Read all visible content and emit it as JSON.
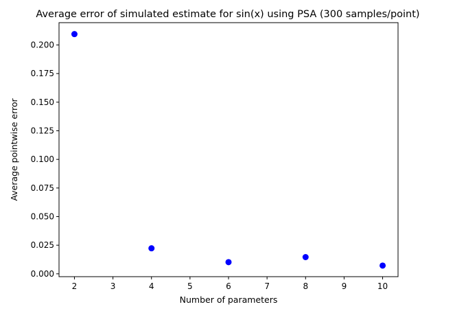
{
  "chart_data": {
    "type": "scatter",
    "title": "Average error of simulated estimate for sin(x) using PSA (300 samples/point)",
    "xlabel": "Number of parameters",
    "ylabel": "Average pointwise error",
    "xlim": [
      1.6,
      10.4
    ],
    "ylim": [
      -0.0025,
      0.2195
    ],
    "x_ticks": [
      2,
      3,
      4,
      5,
      6,
      7,
      8,
      9,
      10
    ],
    "x_tick_labels": [
      "2",
      "3",
      "4",
      "5",
      "6",
      "7",
      "8",
      "9",
      "10"
    ],
    "y_ticks": [
      0.0,
      0.025,
      0.05,
      0.075,
      0.1,
      0.125,
      0.15,
      0.175,
      0.2
    ],
    "y_tick_labels": [
      "0.000",
      "0.025",
      "0.050",
      "0.075",
      "0.100",
      "0.125",
      "0.150",
      "0.175",
      "0.200"
    ],
    "grid": false,
    "series": [
      {
        "color": "#0000ff",
        "x": [
          2,
          4,
          6,
          8,
          10
        ],
        "y": [
          0.2095,
          0.0223,
          0.0102,
          0.0146,
          0.0072
        ]
      }
    ]
  }
}
